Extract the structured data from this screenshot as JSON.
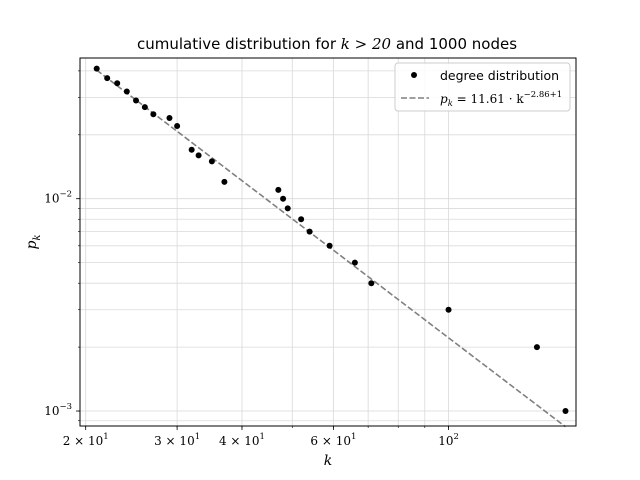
{
  "chart_data": {
    "type": "scatter",
    "title": {
      "prefix": "cumulative distribution for ",
      "math": "k > 20",
      "suffix": " and 1000 nodes"
    },
    "xlabel": "k",
    "ylabel": {
      "base": "p",
      "sub": "k"
    },
    "xscale": "log",
    "yscale": "log",
    "xlim": [
      19.5,
      176
    ],
    "ylim": [
      0.00085,
      0.046
    ],
    "grid": true,
    "legend_position": "top-right",
    "x_ticks": [
      {
        "value": 20,
        "base": "2 × 10",
        "exp": "1"
      },
      {
        "value": 30,
        "base": "3 × 10",
        "exp": "1"
      },
      {
        "value": 40,
        "base": "4 × 10",
        "exp": "1"
      },
      {
        "value": 60,
        "base": "6 × 10",
        "exp": "1"
      },
      {
        "value": 100,
        "base": "10",
        "exp": "2"
      }
    ],
    "y_ticks": [
      {
        "value": 0.01,
        "base": "10",
        "exp": "−2"
      },
      {
        "value": 0.001,
        "base": "10",
        "exp": "−3"
      }
    ],
    "series": [
      {
        "name": "degree distribution",
        "style": "scatter",
        "color": "#000000",
        "points": [
          {
            "x": 21,
            "y": 0.041
          },
          {
            "x": 22,
            "y": 0.037
          },
          {
            "x": 23,
            "y": 0.035
          },
          {
            "x": 24,
            "y": 0.032
          },
          {
            "x": 25,
            "y": 0.029
          },
          {
            "x": 26,
            "y": 0.027
          },
          {
            "x": 27,
            "y": 0.025
          },
          {
            "x": 29,
            "y": 0.024
          },
          {
            "x": 30,
            "y": 0.022
          },
          {
            "x": 32,
            "y": 0.017
          },
          {
            "x": 33,
            "y": 0.016
          },
          {
            "x": 35,
            "y": 0.015
          },
          {
            "x": 37,
            "y": 0.012
          },
          {
            "x": 47,
            "y": 0.011
          },
          {
            "x": 48,
            "y": 0.01
          },
          {
            "x": 49,
            "y": 0.009
          },
          {
            "x": 52,
            "y": 0.008
          },
          {
            "x": 54,
            "y": 0.007
          },
          {
            "x": 59,
            "y": 0.006
          },
          {
            "x": 66,
            "y": 0.005
          },
          {
            "x": 71,
            "y": 0.004
          },
          {
            "x": 100,
            "y": 0.003
          },
          {
            "x": 148,
            "y": 0.002
          },
          {
            "x": 168,
            "y": 0.001
          }
        ]
      },
      {
        "name": "p_k = 11.61 · k^(−2.86+1)",
        "label": {
          "lhs_base": "p",
          "lhs_sub": "k",
          "rhs": " = 11.61 · k",
          "exp": "−2.86+1"
        },
        "style": "dashed",
        "color": "#808080",
        "coef": 11.61,
        "exponent": -1.86,
        "x_range": [
          21,
          168
        ]
      }
    ]
  }
}
